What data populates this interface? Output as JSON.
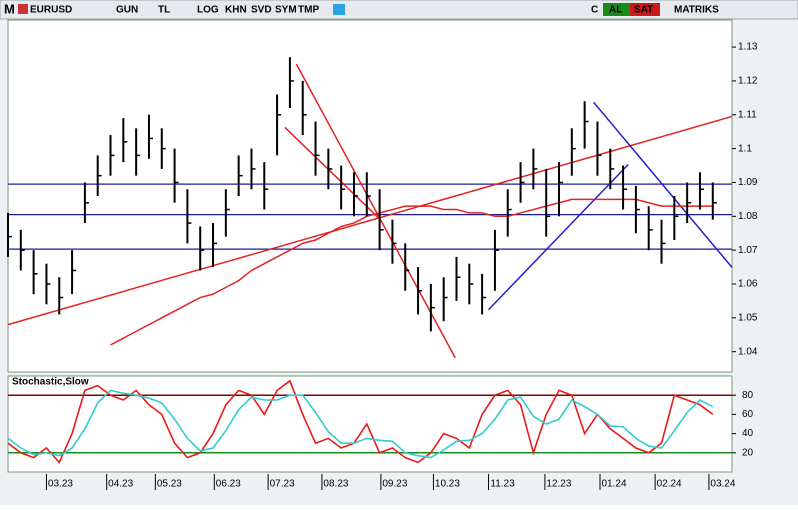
{
  "toolbar": {
    "logo": "M",
    "symbol": "EURUSD",
    "buttons": [
      "GUN",
      "TL",
      "LOG",
      "KHN",
      "SVD",
      "SYM",
      "TMP"
    ],
    "right_buttons": [
      "C",
      "AL",
      "SAT"
    ],
    "brand": "MATRIKS"
  },
  "chart_data": [
    {
      "type": "ohlc",
      "x": [
        0,
        1,
        2,
        3,
        4,
        5,
        6,
        7,
        8,
        9,
        10,
        11,
        12,
        13,
        14,
        15,
        16,
        17,
        18,
        19,
        20,
        21,
        22,
        23,
        24,
        25,
        26,
        27,
        28,
        29,
        30,
        31,
        32,
        33,
        34,
        35,
        36,
        37,
        38,
        39,
        40,
        41,
        42,
        43,
        44,
        45,
        46,
        47,
        48,
        49,
        50,
        51,
        52,
        53,
        54,
        55
      ],
      "high": [
        1.081,
        1.076,
        1.07,
        1.066,
        1.062,
        1.07,
        1.09,
        1.098,
        1.104,
        1.109,
        1.106,
        1.11,
        1.106,
        1.1,
        1.088,
        1.077,
        1.078,
        1.088,
        1.098,
        1.1,
        1.096,
        1.116,
        1.127,
        1.12,
        1.108,
        1.1,
        1.095,
        1.093,
        1.093,
        1.088,
        1.079,
        1.072,
        1.065,
        1.06,
        1.062,
        1.068,
        1.066,
        1.063,
        1.076,
        1.088,
        1.096,
        1.1,
        1.094,
        1.096,
        1.106,
        1.114,
        1.108,
        1.1,
        1.095,
        1.089,
        1.083,
        1.079,
        1.086,
        1.09,
        1.093,
        1.09
      ],
      "low": [
        1.068,
        1.064,
        1.057,
        1.054,
        1.051,
        1.057,
        1.078,
        1.086,
        1.092,
        1.096,
        1.092,
        1.097,
        1.094,
        1.084,
        1.072,
        1.064,
        1.065,
        1.074,
        1.086,
        1.088,
        1.082,
        1.098,
        1.112,
        1.104,
        1.092,
        1.088,
        1.082,
        1.08,
        1.08,
        1.07,
        1.066,
        1.058,
        1.051,
        1.046,
        1.049,
        1.055,
        1.054,
        1.051,
        1.058,
        1.074,
        1.084,
        1.088,
        1.074,
        1.08,
        1.092,
        1.1,
        1.092,
        1.088,
        1.082,
        1.075,
        1.07,
        1.066,
        1.073,
        1.078,
        1.082,
        1.079
      ],
      "close": [
        1.074,
        1.07,
        1.063,
        1.06,
        1.056,
        1.064,
        1.084,
        1.092,
        1.098,
        1.102,
        1.098,
        1.103,
        1.1,
        1.09,
        1.078,
        1.07,
        1.072,
        1.082,
        1.092,
        1.094,
        1.088,
        1.11,
        1.12,
        1.11,
        1.098,
        1.094,
        1.088,
        1.086,
        1.086,
        1.076,
        1.072,
        1.064,
        1.058,
        1.053,
        1.056,
        1.062,
        1.06,
        1.056,
        1.07,
        1.082,
        1.09,
        1.094,
        1.08,
        1.09,
        1.1,
        1.108,
        1.098,
        1.094,
        1.088,
        1.082,
        1.076,
        1.072,
        1.08,
        1.084,
        1.088,
        1.084
      ],
      "ma": [
        null,
        null,
        null,
        null,
        null,
        null,
        null,
        null,
        1.042,
        1.044,
        1.046,
        1.048,
        1.05,
        1.052,
        1.054,
        1.056,
        1.057,
        1.059,
        1.061,
        1.064,
        1.066,
        1.068,
        1.07,
        1.072,
        1.073,
        1.075,
        1.077,
        1.078,
        1.08,
        1.081,
        1.082,
        1.083,
        1.083,
        1.083,
        1.082,
        1.082,
        1.081,
        1.081,
        1.08,
        1.08,
        1.081,
        1.082,
        1.083,
        1.084,
        1.085,
        1.085,
        1.085,
        1.085,
        1.085,
        1.085,
        1.084,
        1.083,
        1.083,
        1.083,
        1.083,
        1.083
      ],
      "ma_color": "#e32222",
      "bar_color": "#000000",
      "hlines": [
        1.0895,
        1.0805,
        1.0703
      ],
      "hline_color": "#1a1aa0",
      "trendlines": [
        {
          "color": "#e32222",
          "x": [
            0,
            56.5
          ],
          "y": [
            1.048,
            1.1095
          ]
        },
        {
          "color": "#e32222",
          "x": [
            22.5,
            34.9
          ],
          "y": [
            1.125,
            1.0382
          ]
        },
        {
          "color": "#e32222",
          "x": [
            21.6,
            28.9
          ],
          "y": [
            1.1063,
            1.0796
          ]
        },
        {
          "color": "#2222cc",
          "x": [
            37.5,
            48.4
          ],
          "y": [
            1.0524,
            1.0953
          ]
        },
        {
          "color": "#2222cc",
          "x": [
            45.7,
            56.5
          ],
          "y": [
            1.1137,
            1.0649
          ]
        }
      ],
      "xlim": [
        0,
        56.5
      ],
      "ylim": [
        1.034,
        1.138
      ],
      "yticks": [
        1.04,
        1.05,
        1.06,
        1.07,
        1.08,
        1.09,
        1.1,
        1.11,
        1.12,
        1.13
      ],
      "xticks": [
        {
          "value": 3.0,
          "label": "03.23"
        },
        {
          "value": 7.7,
          "label": "04.23"
        },
        {
          "value": 11.5,
          "label": "05.23"
        },
        {
          "value": 16.1,
          "label": "06.23"
        },
        {
          "value": 20.3,
          "label": "07.23"
        },
        {
          "value": 24.5,
          "label": "08.23"
        },
        {
          "value": 29.1,
          "label": "09.23"
        },
        {
          "value": 33.2,
          "label": "10.23"
        },
        {
          "value": 37.5,
          "label": "11.23"
        },
        {
          "value": 41.9,
          "label": "12.23"
        },
        {
          "value": 46.2,
          "label": "01.24"
        },
        {
          "value": 50.5,
          "label": "02.24"
        },
        {
          "value": 54.7,
          "label": "03.24"
        }
      ]
    },
    {
      "type": "line",
      "title": "Stochastic,Slow",
      "series": [
        {
          "color": "#e81a1a",
          "values": [
            30,
            20,
            15,
            25,
            10,
            40,
            85,
            90,
            80,
            75,
            85,
            70,
            60,
            30,
            15,
            20,
            40,
            70,
            85,
            80,
            60,
            85,
            95,
            60,
            30,
            35,
            25,
            30,
            50,
            20,
            25,
            15,
            10,
            20,
            40,
            35,
            25,
            60,
            80,
            85,
            70,
            20,
            60,
            85,
            80,
            40,
            60,
            45,
            35,
            25,
            20,
            30,
            80,
            75,
            70,
            60
          ]
        },
        {
          "color": "#33cccc",
          "values": [
            35,
            25,
            18,
            20,
            17,
            25,
            45,
            72,
            85,
            82,
            80,
            77,
            72,
            55,
            35,
            22,
            25,
            43,
            65,
            78,
            75,
            75,
            80,
            80,
            62,
            42,
            30,
            30,
            35,
            33,
            32,
            20,
            17,
            15,
            23,
            32,
            33,
            40,
            55,
            75,
            78,
            58,
            50,
            55,
            75,
            68,
            60,
            48,
            47,
            35,
            27,
            25,
            43,
            62,
            75,
            68
          ]
        }
      ],
      "levels": [
        {
          "value": 80,
          "color": "#8b0000"
        },
        {
          "value": 20,
          "color": "#1a8a1a"
        }
      ],
      "ylim": [
        0,
        100
      ],
      "yticks": [
        20,
        40,
        60,
        80
      ]
    }
  ]
}
